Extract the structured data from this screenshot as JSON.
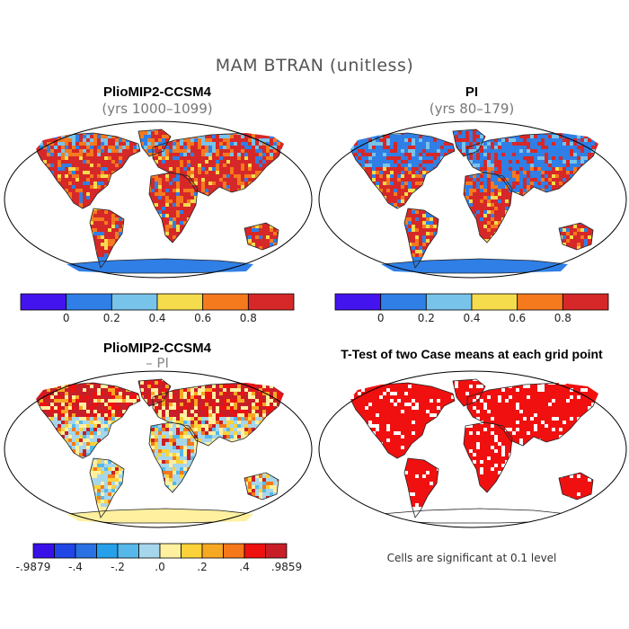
{
  "figure": {
    "title": "MAM BTRAN (unitless)"
  },
  "panels": {
    "top_left": {
      "title": "PlioMIP2-CCSM4",
      "subtitle": "(yrs 1000–1099)"
    },
    "top_right": {
      "title": "PI",
      "subtitle": "(yrs 80–179)"
    },
    "bottom_left": {
      "title": "PlioMIP2-CCSM4",
      "subtitle": "– PI"
    },
    "bottom_right": {
      "title": "T-Test of two Case means at each grid point",
      "note": "Cells are significant at 0.1 level"
    }
  },
  "colorbar_abs": {
    "colors": [
      "#4414ee",
      "#2f7fe6",
      "#78c3ea",
      "#f5dc4c",
      "#f57a1e",
      "#d62828"
    ],
    "labels": [
      "0",
      "0.2",
      "0.4",
      "0.6",
      "0.8"
    ]
  },
  "colorbar_diff": {
    "colors": [
      "#3a10e8",
      "#2046e6",
      "#2a72e4",
      "#26a0ea",
      "#56b8ea",
      "#a6d6ec",
      "#fff0a0",
      "#fbd23a",
      "#f7a822",
      "#f5781a",
      "#ef1010",
      "#c81e28"
    ],
    "labels": [
      "-.9879",
      "-.4",
      "-.2",
      ".0",
      ".2",
      ".4",
      ".9859"
    ]
  },
  "map_colors": {
    "ocean": "#ffffff",
    "sig": "#f01010"
  }
}
